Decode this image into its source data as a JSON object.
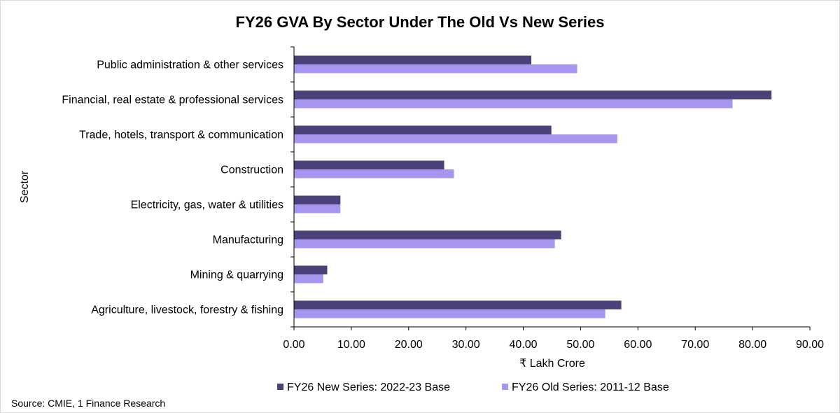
{
  "chart_data": {
    "type": "bar",
    "orientation": "horizontal",
    "title": "FY26 GVA By Sector Under The Old Vs New Series",
    "xlabel": "₹ Lakh Crore",
    "ylabel": "Sector",
    "xlim": [
      0,
      90
    ],
    "xticks": [
      "0.00",
      "10.00",
      "20.00",
      "30.00",
      "40.00",
      "50.00",
      "60.00",
      "70.00",
      "80.00",
      "90.00"
    ],
    "categories": [
      "Public administration & other services",
      "Financial, real estate & professional services",
      "Trade, hotels, transport & communication",
      "Construction",
      "Electricity, gas, water & utilities",
      "Manufacturing",
      "Mining & quarrying",
      "Agriculture, livestock, forestry & fishing"
    ],
    "series": [
      {
        "name": "FY26 New Series: 2022-23 Base",
        "color": "#4b4279",
        "values": [
          41.4,
          83.3,
          44.9,
          26.2,
          8.1,
          46.6,
          5.8,
          57.1
        ]
      },
      {
        "name": "FY26 Old Series: 2011-12 Base",
        "color": "#a895f0",
        "values": [
          49.4,
          76.5,
          56.4,
          27.9,
          8.1,
          45.5,
          5.1,
          54.3
        ]
      }
    ],
    "grid": false,
    "legend_position": "bottom",
    "source": "Source: CMIE, 1 Finance Research"
  }
}
